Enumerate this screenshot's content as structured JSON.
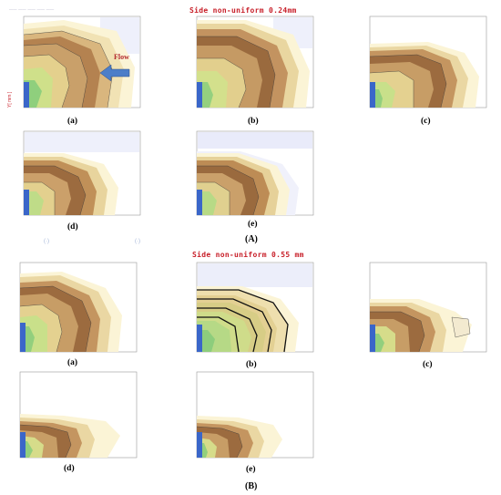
{
  "section_a": {
    "title": "Side non-uniform 0.24mm",
    "label": "(A)",
    "flow_label": "Flow",
    "y_axis_label": "Y[ mm ]",
    "panels": [
      {
        "label": "(a)"
      },
      {
        "label": "(b)"
      },
      {
        "label": "(c)"
      },
      {
        "label": "(d)"
      },
      {
        "label": "(e)"
      }
    ]
  },
  "section_b": {
    "title": "Side non-uniform 0.55 mm",
    "label": "(B)",
    "panels": [
      {
        "label": "(a)"
      },
      {
        "label": "(b)"
      },
      {
        "label": "(c)"
      },
      {
        "label": "(d)"
      },
      {
        "label": "(e)"
      }
    ]
  },
  "colors": {
    "title": "#c8202a",
    "flow_arrow": "#4d7ec8",
    "wire": "#3a66c9",
    "contour_dark": "#8f5a2c",
    "contour_light": "#fdf7d8"
  }
}
